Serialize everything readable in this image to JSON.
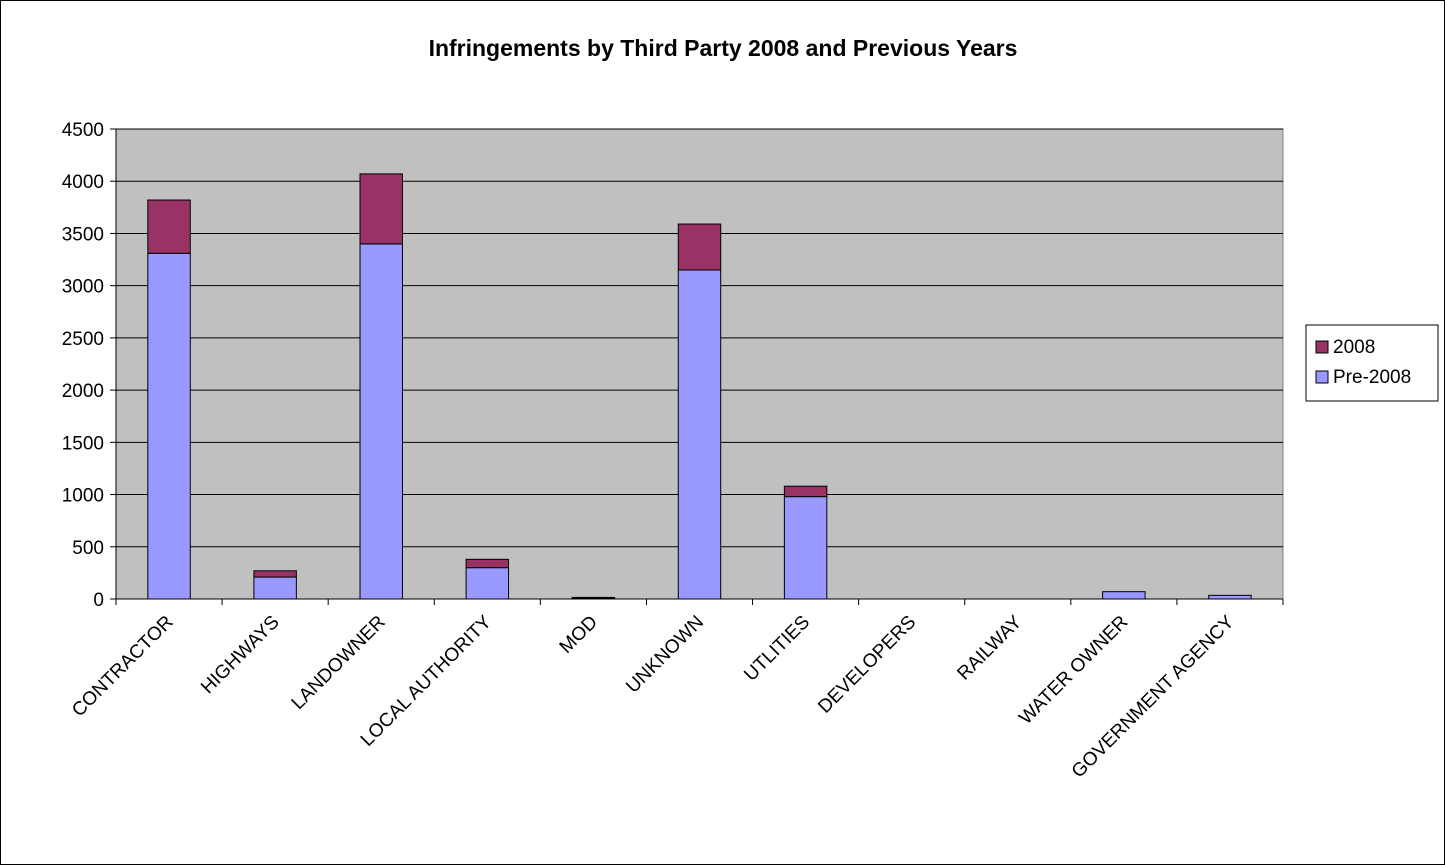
{
  "chart_data": {
    "type": "bar",
    "stacked": true,
    "title": "Infringements by Third Party 2008 and Previous Years",
    "xlabel": "",
    "ylabel": "",
    "ylim": [
      0,
      4500
    ],
    "yticks": [
      0,
      500,
      1000,
      1500,
      2000,
      2500,
      3000,
      3500,
      4000,
      4500
    ],
    "grid": true,
    "legend_position": "right",
    "categories": [
      "CONTRACTOR",
      "HIGHWAYS",
      "LANDOWNER",
      "LOCAL AUTHORITY",
      "MOD",
      "UNKNOWN",
      "UTLITIES",
      "DEVELOPERS",
      "RAILWAY",
      "WATER OWNER",
      "GOVERNMENT AGENCY"
    ],
    "series": [
      {
        "name": "Pre-2008",
        "color": "#9999ff",
        "values": [
          3310,
          210,
          3400,
          300,
          5,
          3150,
          980,
          0,
          0,
          70,
          35
        ]
      },
      {
        "name": "2008",
        "color": "#993366",
        "values": [
          510,
          60,
          670,
          80,
          10,
          440,
          100,
          0,
          0,
          0,
          0
        ]
      }
    ],
    "legend_order": [
      "2008",
      "Pre-2008"
    ],
    "plot_background": "#c0c0c0"
  }
}
